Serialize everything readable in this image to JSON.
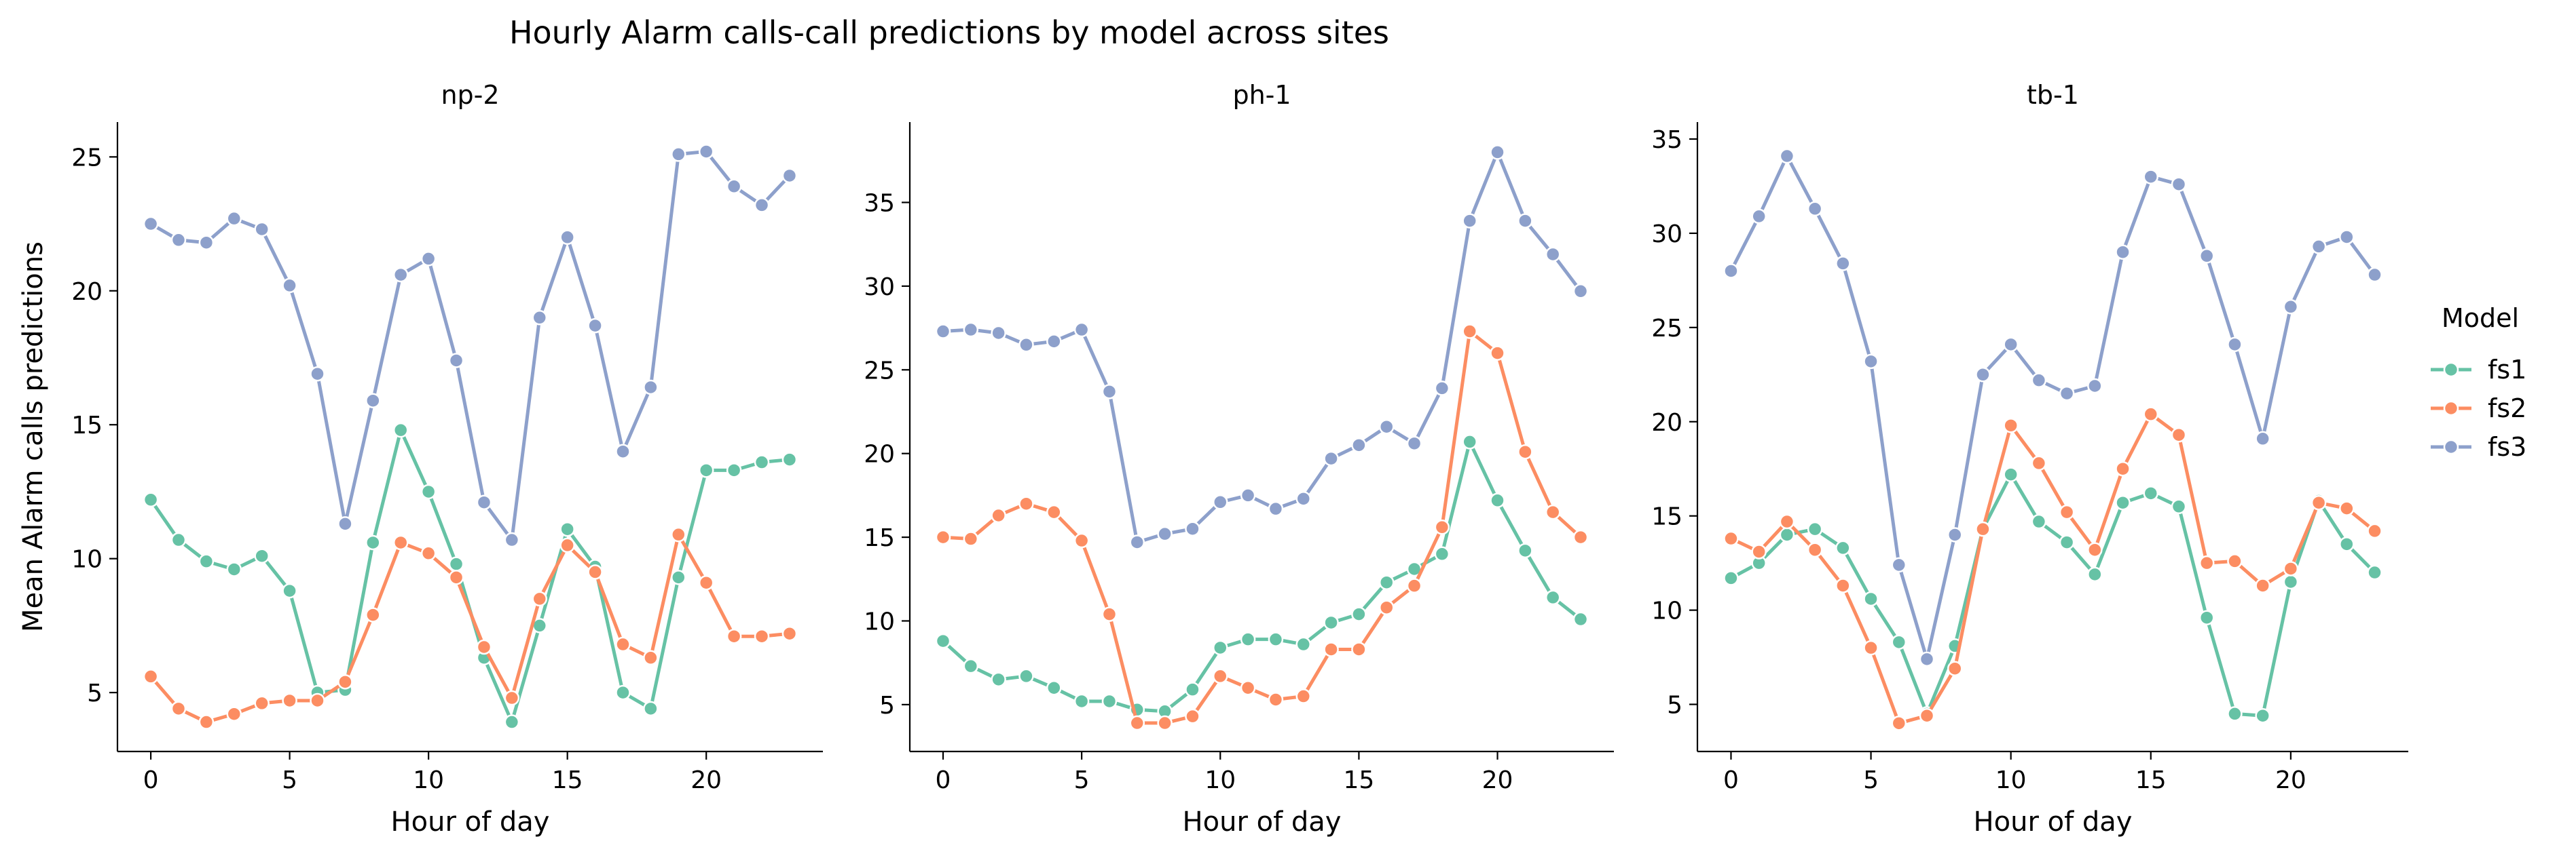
{
  "chart_data": {
    "type": "line",
    "title": "Hourly Alarm calls-call predictions by model across sites",
    "legend": {
      "title": "Model",
      "placement": "right",
      "entries": [
        {
          "name": "fs1",
          "color": "#66c2a5"
        },
        {
          "name": "fs2",
          "color": "#fc8d62"
        },
        {
          "name": "fs3",
          "color": "#8da0cb"
        }
      ]
    },
    "panels": [
      {
        "title": "np-2",
        "xlabel": "Hour of day",
        "ylabel": "Mean Alarm calls predictions",
        "xlim": [
          -1.2,
          24.2
        ],
        "ylim": [
          2.8,
          26.3
        ],
        "xticks": [
          0,
          5,
          10,
          15,
          20
        ],
        "yticks": [
          5,
          10,
          15,
          20,
          25
        ],
        "x": [
          0,
          1,
          2,
          3,
          4,
          5,
          6,
          7,
          8,
          9,
          10,
          11,
          12,
          13,
          14,
          15,
          16,
          17,
          18,
          19,
          20,
          21,
          22,
          23
        ],
        "series": [
          {
            "name": "fs1",
            "color": "#66c2a5",
            "values": [
              12.2,
              10.7,
              9.9,
              9.6,
              10.1,
              8.8,
              5.0,
              5.1,
              10.6,
              14.8,
              12.5,
              9.8,
              6.3,
              3.9,
              7.5,
              11.1,
              9.7,
              5.0,
              4.4,
              9.3,
              13.3,
              13.3,
              13.6,
              13.7
            ]
          },
          {
            "name": "fs2",
            "color": "#fc8d62",
            "values": [
              5.6,
              4.4,
              3.9,
              4.2,
              4.6,
              4.7,
              4.7,
              5.4,
              7.9,
              10.6,
              10.2,
              9.3,
              6.7,
              4.8,
              8.5,
              10.5,
              9.5,
              6.8,
              6.3,
              10.9,
              9.1,
              7.1,
              7.1,
              7.2
            ]
          },
          {
            "name": "fs3",
            "color": "#8da0cb",
            "values": [
              22.5,
              21.9,
              21.8,
              22.7,
              22.3,
              20.2,
              16.9,
              11.3,
              15.9,
              20.6,
              21.2,
              17.4,
              12.1,
              10.7,
              19.0,
              22.0,
              18.7,
              14.0,
              16.4,
              25.1,
              25.2,
              23.9,
              23.2,
              24.3
            ]
          }
        ]
      },
      {
        "title": "ph-1",
        "xlabel": "Hour of day",
        "ylabel": "",
        "xlim": [
          -1.2,
          24.2
        ],
        "ylim": [
          2.2,
          39.8
        ],
        "xticks": [
          0,
          5,
          10,
          15,
          20
        ],
        "yticks": [
          5,
          10,
          15,
          20,
          25,
          30,
          35
        ],
        "x": [
          0,
          1,
          2,
          3,
          4,
          5,
          6,
          7,
          8,
          9,
          10,
          11,
          12,
          13,
          14,
          15,
          16,
          17,
          18,
          19,
          20,
          21,
          22,
          23
        ],
        "series": [
          {
            "name": "fs1",
            "color": "#66c2a5",
            "values": [
              8.8,
              7.3,
              6.5,
              6.7,
              6.0,
              5.2,
              5.2,
              4.7,
              4.6,
              5.9,
              8.4,
              8.9,
              8.9,
              8.6,
              9.9,
              10.4,
              12.3,
              13.1,
              14.0,
              20.7,
              17.2,
              14.2,
              11.4,
              10.1
            ]
          },
          {
            "name": "fs2",
            "color": "#fc8d62",
            "values": [
              15.0,
              14.9,
              16.3,
              17.0,
              16.5,
              14.8,
              10.4,
              3.9,
              3.9,
              4.3,
              6.7,
              6.0,
              5.3,
              5.5,
              8.3,
              8.3,
              10.8,
              12.1,
              15.6,
              27.3,
              26.0,
              20.1,
              16.5,
              15.0
            ]
          },
          {
            "name": "fs3",
            "color": "#8da0cb",
            "values": [
              27.3,
              27.4,
              27.2,
              26.5,
              26.7,
              27.4,
              23.7,
              14.7,
              15.2,
              15.5,
              17.1,
              17.5,
              16.7,
              17.3,
              19.7,
              20.5,
              21.6,
              20.6,
              23.9,
              33.9,
              38.0,
              33.9,
              31.9,
              29.7
            ]
          }
        ]
      },
      {
        "title": "tb-1",
        "xlabel": "Hour of day",
        "ylabel": "",
        "xlim": [
          -1.2,
          24.2
        ],
        "ylim": [
          2.5,
          35.9
        ],
        "xticks": [
          0,
          5,
          10,
          15,
          20
        ],
        "yticks": [
          5,
          10,
          15,
          20,
          25,
          30,
          35
        ],
        "x": [
          0,
          1,
          2,
          3,
          4,
          5,
          6,
          7,
          8,
          9,
          10,
          11,
          12,
          13,
          14,
          15,
          16,
          17,
          18,
          19,
          20,
          21,
          22,
          23
        ],
        "series": [
          {
            "name": "fs1",
            "color": "#66c2a5",
            "values": [
              11.7,
              12.5,
              14.0,
              14.3,
              13.3,
              10.6,
              8.3,
              4.5,
              8.1,
              14.3,
              17.2,
              14.7,
              13.6,
              11.9,
              15.7,
              16.2,
              15.5,
              9.6,
              4.5,
              4.4,
              11.5,
              15.8,
              13.5,
              12.0
            ]
          },
          {
            "name": "fs2",
            "color": "#fc8d62",
            "values": [
              13.8,
              13.1,
              14.7,
              13.2,
              11.3,
              8.0,
              4.0,
              4.4,
              6.9,
              14.3,
              19.8,
              17.8,
              15.2,
              13.2,
              17.5,
              20.4,
              19.3,
              12.5,
              12.6,
              11.3,
              12.2,
              15.7,
              15.4,
              14.2
            ]
          },
          {
            "name": "fs3",
            "color": "#8da0cb",
            "values": [
              28.0,
              30.9,
              34.1,
              31.3,
              28.4,
              23.2,
              12.4,
              7.4,
              14.0,
              22.5,
              24.1,
              22.2,
              21.5,
              21.9,
              29.0,
              33.0,
              32.6,
              28.8,
              24.1,
              19.1,
              26.1,
              29.3,
              29.8,
              27.8
            ]
          }
        ]
      }
    ]
  }
}
